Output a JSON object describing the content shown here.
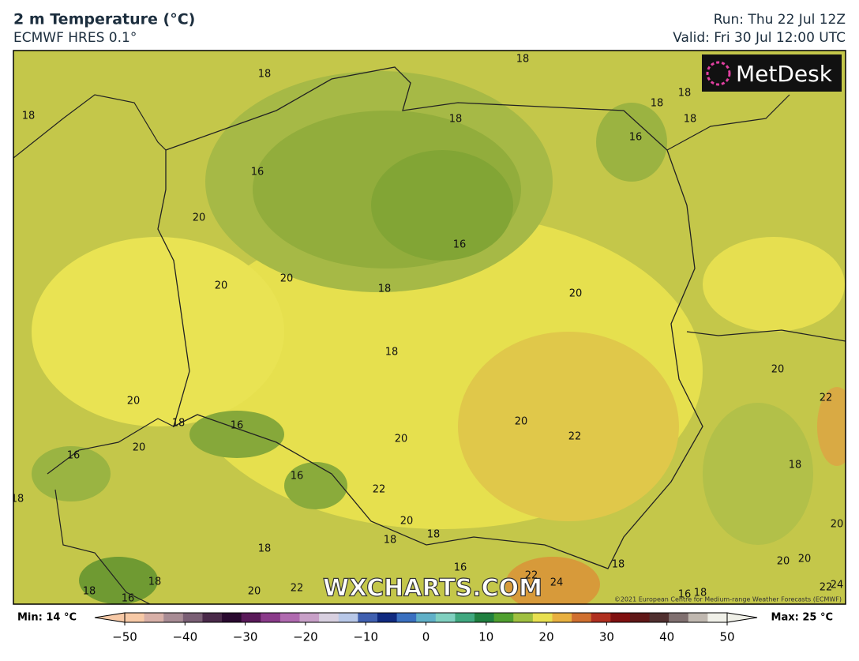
{
  "header": {
    "title": "2 m Temperature (°C)",
    "subtitle": "ECMWF HRES 0.1°",
    "run": "Run: Thu 22 Jul 12Z",
    "valid": "Valid: Fri 30 Jul 12:00 UTC"
  },
  "logo": "MetDesk",
  "watermark": "WXCHARTS.COM",
  "copyright": "©2021 European Centre for Medium-range Weather Forecasts (ECMWF)",
  "contour_labels": [
    18,
    18,
    18,
    18,
    18,
    18,
    18,
    16,
    16,
    20,
    16,
    20,
    20,
    18,
    20,
    18,
    20,
    22,
    20,
    18,
    16,
    20,
    22,
    20,
    20,
    16,
    18,
    16,
    22,
    18,
    20,
    20,
    18,
    18,
    18,
    18,
    20,
    20,
    16,
    22,
    24,
    18,
    18,
    16,
    20,
    22,
    22,
    24,
    16,
    18
  ],
  "colorbar": {
    "min_label": "Min: 14 °C",
    "max_label": "Max: 25 °C",
    "lim": [
      -50,
      50
    ],
    "ticks": [
      {
        "value": -50,
        "label": "−50"
      },
      {
        "value": -40,
        "label": "−40"
      },
      {
        "value": -30,
        "label": "−30"
      },
      {
        "value": -20,
        "label": "−20"
      },
      {
        "value": -10,
        "label": "−10"
      },
      0,
      10,
      20,
      30,
      40,
      50
    ],
    "colors": [
      "#f7c9a6",
      "#d8b0a8",
      "#a88c95",
      "#7a5f75",
      "#4a2a4a",
      "#2a0a30",
      "#5a1a5a",
      "#8a3a8a",
      "#b06ab0",
      "#c8a0c8",
      "#d8d0e0",
      "#b8c8e8",
      "#4060b0",
      "#102a80",
      "#3a70c0",
      "#60b0c8",
      "#80d0c0",
      "#40a880",
      "#208040",
      "#50a030",
      "#a0c040",
      "#e8e050",
      "#e8b040",
      "#d07030",
      "#b03020",
      "#801010",
      "#601818",
      "#503030",
      "#807070",
      "#c0b8b0",
      "#f0f0e8"
    ]
  }
}
